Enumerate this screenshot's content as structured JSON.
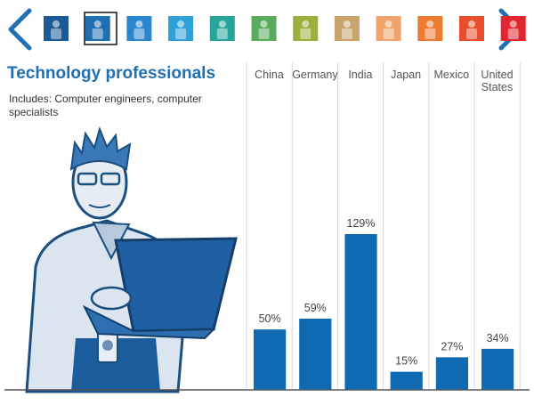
{
  "chart_data": {
    "type": "bar",
    "title": "Technology professionals",
    "subtitle": "Includes: Computer engineers, computer specialists",
    "categories": [
      "China",
      "Germany",
      "India",
      "Japan",
      "Mexico",
      "United States"
    ],
    "values": [
      50,
      59,
      129,
      15,
      27,
      34
    ],
    "value_labels": [
      "50%",
      "59%",
      "129%",
      "15%",
      "27%",
      "34%"
    ],
    "color": "#0f6ab4"
  }
}
